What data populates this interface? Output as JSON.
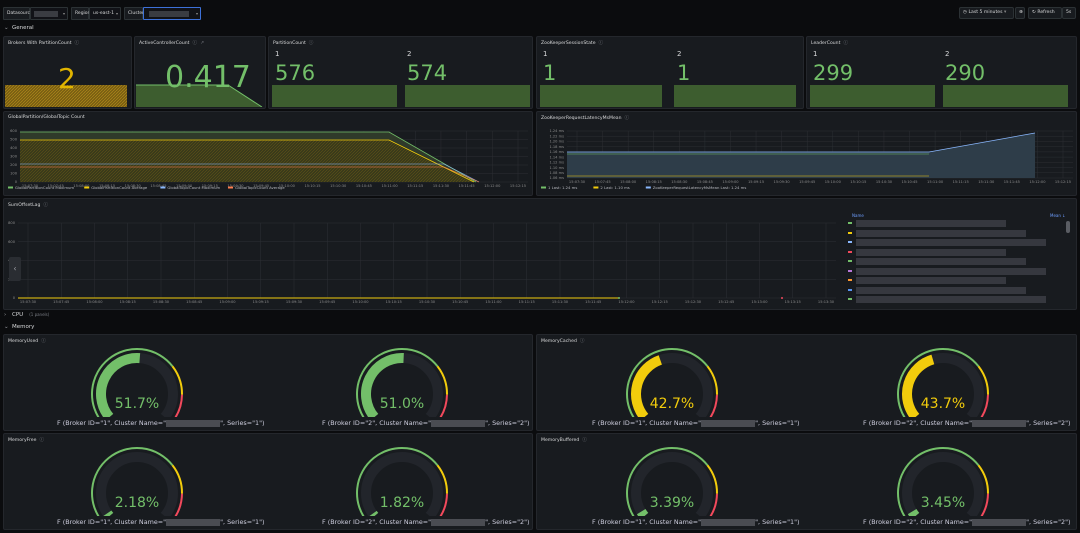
{
  "toolbar": {
    "datasource_label": "Datasource",
    "region_label": "Region",
    "region_value": "us-east-1",
    "cluster_label": "Cluster",
    "time_range": "Last 5 minutes",
    "refresh_label": "Refresh",
    "refresh_interval": "5s"
  },
  "rows": {
    "general": "General",
    "cpu": "CPU",
    "cpu_panels": "(1 panels)",
    "memory": "Memory"
  },
  "stats": {
    "brokers": {
      "title": "Brokers With PartitionCount",
      "value": "2",
      "color": "#e0b400"
    },
    "active_controller": {
      "title": "ActiveControllerCount",
      "value": "0.417",
      "color": "#73bf69"
    },
    "partition_count": {
      "title": "PartitionCount",
      "lbl1": "1",
      "val1": "576",
      "lbl2": "2",
      "val2": "574"
    },
    "zk_success": {
      "title": "ZooKeeperSessionState",
      "lbl1": "1",
      "val1": "1",
      "lbl2": "2",
      "val2": "1"
    },
    "leader_count": {
      "title": "LeaderCount",
      "lbl1": "1",
      "val1": "299",
      "lbl2": "2",
      "val2": "290"
    }
  },
  "graph_global": {
    "title": "GlobalPartition/GlobalTopic Count",
    "yticks": [
      "600",
      "500",
      "400",
      "300",
      "200",
      "100",
      "0"
    ],
    "xticks": [
      "15:07:30",
      "15:07:45",
      "15:08:00",
      "15:08:15",
      "15:08:30",
      "15:08:45",
      "15:09:00",
      "15:09:15",
      "15:09:30",
      "15:09:45",
      "15:10:00",
      "15:10:15",
      "15:10:30",
      "15:10:45",
      "15:11:00",
      "15:11:15",
      "15:11:30",
      "15:11:45",
      "15:12:00",
      "15:12:15"
    ],
    "legend": [
      {
        "name": "GlobalPartitionCount Maximum",
        "color": "#73bf69"
      },
      {
        "name": "GlobalPartitionCount Average",
        "color": "#f2cc0c"
      },
      {
        "name": "GlobalTopicCount Maximum",
        "color": "#8ab8ff"
      },
      {
        "name": "GlobalTopicCount Average",
        "color": "#ff7f50"
      }
    ]
  },
  "graph_zk": {
    "title": "ZooKeeperRequestLatencyMsMean",
    "yticks": [
      "1.24 ms",
      "1.22 ms",
      "1.20 ms",
      "1.18 ms",
      "1.16 ms",
      "1.14 ms",
      "1.12 ms",
      "1.10 ms",
      "1.08 ms",
      "1.06 ms"
    ],
    "xticks": [
      "15:07:30",
      "15:07:45",
      "15:08:00",
      "15:08:15",
      "15:08:30",
      "15:08:45",
      "15:09:00",
      "15:09:15",
      "15:09:30",
      "15:09:45",
      "15:10:00",
      "15:10:15",
      "15:10:30",
      "15:10:45",
      "15:11:00",
      "15:11:15",
      "15:11:30",
      "15:11:45",
      "15:12:00",
      "15:12:15"
    ],
    "legend": [
      {
        "name": "1  Last: 1.24 ms",
        "color": "#73bf69"
      },
      {
        "name": "2  Last: 1.10 ms",
        "color": "#f2cc0c"
      },
      {
        "name": "ZooKeeperRequestLatencyMsMean  Last: 1.24 ms",
        "color": "#8ab8ff"
      }
    ]
  },
  "graph_lag": {
    "title": "SumOffsetLag",
    "yticks": [
      "800",
      "600",
      "400",
      "200",
      "0"
    ],
    "xticks": [
      "15:07:30",
      "15:07:45",
      "15:08:00",
      "15:08:15",
      "15:08:30",
      "15:08:45",
      "15:09:00",
      "15:09:15",
      "15:09:30",
      "15:09:45",
      "15:10:00",
      "15:10:15",
      "15:10:30",
      "15:10:45",
      "15:11:00",
      "15:11:15",
      "15:11:30",
      "15:11:45",
      "15:12:00",
      "15:12:15",
      "15:12:30",
      "15:12:45",
      "15:13:00",
      "15:13:15",
      "15:13:30"
    ],
    "legend_name_header": "Name",
    "legend_mean_header": "Mean ↓"
  },
  "gauges": {
    "memory_used": {
      "title": "MemoryUsed",
      "g1": {
        "value": "51.7%",
        "pct": 51.7,
        "color": "#73bf69",
        "label_pre": "F (Broker ID=\"1\", Cluster Name=\"",
        "label_post": "\", Series=\"1\")"
      },
      "g2": {
        "value": "51.0%",
        "pct": 51.0,
        "color": "#73bf69",
        "label_pre": "F (Broker ID=\"2\", Cluster Name=\"",
        "label_post": "\", Series=\"2\")"
      }
    },
    "memory_cached": {
      "title": "MemoryCached",
      "g1": {
        "value": "42.7%",
        "pct": 42.7,
        "color": "#f2cc0c",
        "label_pre": "F (Broker ID=\"1\", Cluster Name=\"",
        "label_post": "\", Series=\"1\")"
      },
      "g2": {
        "value": "43.7%",
        "pct": 43.7,
        "color": "#f2cc0c",
        "label_pre": "F (Broker ID=\"2\", Cluster Name=\"",
        "label_post": "\", Series=\"2\")"
      }
    },
    "memory_free": {
      "title": "MemoryFree",
      "g1": {
        "value": "2.18%",
        "pct": 2.18,
        "color": "#73bf69",
        "label_pre": "F (Broker ID=\"1\", Cluster Name=\"",
        "label_post": "\", Series=\"1\")"
      },
      "g2": {
        "value": "1.82%",
        "pct": 1.82,
        "color": "#73bf69",
        "label_pre": "F (Broker ID=\"2\", Cluster Name=\"",
        "label_post": "\", Series=\"2\")"
      }
    },
    "memory_buffered": {
      "title": "MemoryBuffered",
      "g1": {
        "value": "3.39%",
        "pct": 3.39,
        "color": "#73bf69",
        "label_pre": "F (Broker ID=\"1\", Cluster Name=\"",
        "label_post": "\", Series=\"1\")"
      },
      "g2": {
        "value": "3.45%",
        "pct": 3.45,
        "color": "#73bf69",
        "label_pre": "F (Broker ID=\"2\", Cluster Name=\"",
        "label_post": "\", Series=\"2\")"
      }
    }
  },
  "colors": {
    "green": "#73bf69",
    "yellow": "#f2cc0c",
    "red": "#f2495c",
    "blue": "#8ab8ff",
    "orange": "#ff7f50"
  }
}
